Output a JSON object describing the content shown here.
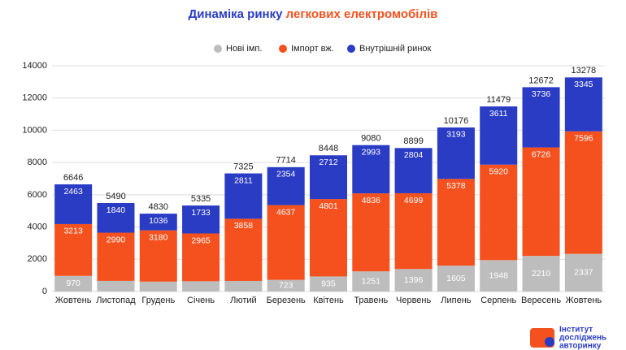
{
  "chart_data": {
    "type": "stacked-bar",
    "title_parts": [
      "Динаміка ринку",
      "легкових електромобілів"
    ],
    "title_colors": [
      "#2a3cc4",
      "#f4511e"
    ],
    "categories": [
      "Жовтень",
      "Листопад",
      "Грудень",
      "Січень",
      "Лютий",
      "Березень",
      "Квітень",
      "Травень",
      "Червень",
      "Липень",
      "Серпень",
      "Вересень",
      "Жовтень"
    ],
    "series": [
      {
        "name": "Нові імп.",
        "color": "#bdbdbd",
        "values": [
          970,
          660,
          614,
          637,
          656,
          723,
          935,
          1251,
          1396,
          1605,
          1948,
          2210,
          2337
        ],
        "value_labels": [
          "970",
          null,
          null,
          null,
          null,
          "723",
          "935",
          "1251",
          "1396",
          "1605",
          "1948",
          "2210",
          "2337"
        ]
      },
      {
        "name": "Імпорт вж.",
        "color": "#f4511e",
        "values": [
          3213,
          2990,
          3180,
          2965,
          3858,
          4637,
          4801,
          4836,
          4699,
          5378,
          5920,
          6726,
          7596
        ]
      },
      {
        "name": "Внутрішній ринок",
        "color": "#2a3cc4",
        "values": [
          2463,
          1840,
          1036,
          1733,
          2811,
          2354,
          2712,
          2993,
          2804,
          3193,
          3611,
          3736,
          3345
        ]
      }
    ],
    "totals": [
      6646,
      5490,
      4830,
      5335,
      7325,
      7714,
      8448,
      9080,
      8899,
      10176,
      11479,
      12672,
      13278
    ],
    "ylim": [
      0,
      14000
    ],
    "yticks": [
      0,
      2000,
      4000,
      6000,
      8000,
      10000,
      12000,
      14000
    ],
    "grid": true,
    "legend": "top",
    "logo": [
      "Інститут",
      "досліджень",
      "авторинку"
    ]
  }
}
